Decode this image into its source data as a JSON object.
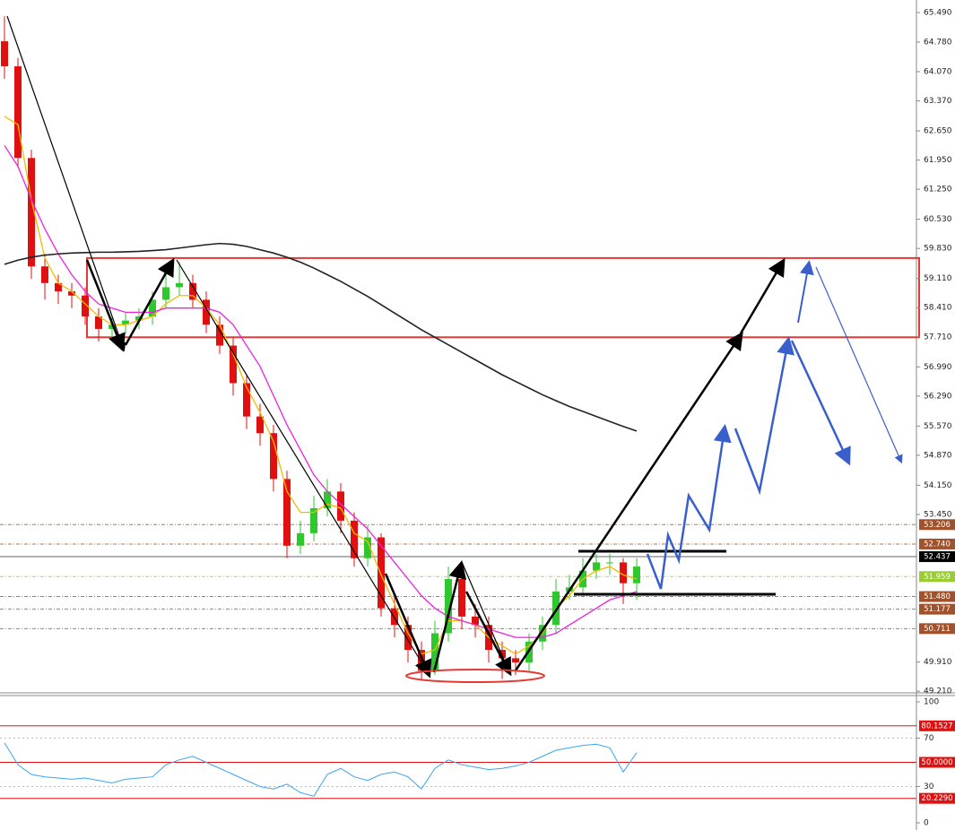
{
  "chart_data": [
    {
      "type": "candlestick",
      "open": [
        64.8,
        64.2,
        62.0,
        59.4,
        59.0,
        58.8,
        58.7,
        58.2,
        57.9,
        58.0,
        58.1,
        58.2,
        58.6,
        58.9,
        59.0,
        58.6,
        58.0,
        57.5,
        56.6,
        55.8,
        55.4,
        54.3,
        52.7,
        53.0,
        53.6,
        54.0,
        53.3,
        52.4,
        52.9,
        51.2,
        50.8,
        50.2,
        49.7,
        50.6,
        51.9,
        51.0,
        50.8,
        50.2,
        50.0,
        49.9,
        50.4,
        50.8,
        51.6,
        51.7,
        52.1,
        52.3,
        52.3,
        51.8
      ],
      "high": [
        65.4,
        64.4,
        62.2,
        59.7,
        59.2,
        59.0,
        58.9,
        58.4,
        58.2,
        58.3,
        58.4,
        58.8,
        59.2,
        59.5,
        59.2,
        58.8,
        58.2,
        57.7,
        56.8,
        56.1,
        55.6,
        54.5,
        53.3,
        53.9,
        54.3,
        54.2,
        53.5,
        53.2,
        53.0,
        51.5,
        51.0,
        50.4,
        50.9,
        52.2,
        52.0,
        51.3,
        51.0,
        50.4,
        50.2,
        50.6,
        51.0,
        51.9,
        52.0,
        52.4,
        52.5,
        52.5,
        52.4,
        52.4
      ],
      "low": [
        63.9,
        61.8,
        59.1,
        58.6,
        58.5,
        58.4,
        58.0,
        57.6,
        57.7,
        57.8,
        57.9,
        58.0,
        58.4,
        58.7,
        58.4,
        57.8,
        57.3,
        56.3,
        55.5,
        55.1,
        54.0,
        52.4,
        52.5,
        52.8,
        53.4,
        53.0,
        52.2,
        52.2,
        51.0,
        50.5,
        49.9,
        49.5,
        49.6,
        50.4,
        50.7,
        50.5,
        49.9,
        49.5,
        49.6,
        49.7,
        50.2,
        50.6,
        51.4,
        51.5,
        51.9,
        52.0,
        51.3,
        51.4
      ],
      "close": [
        64.2,
        62.0,
        59.4,
        59.0,
        58.8,
        58.7,
        58.2,
        57.9,
        58.0,
        58.1,
        58.2,
        58.6,
        58.9,
        59.0,
        58.6,
        58.0,
        57.5,
        56.6,
        55.8,
        55.4,
        54.3,
        52.7,
        53.0,
        53.6,
        54.0,
        53.3,
        52.4,
        52.9,
        51.2,
        50.8,
        50.2,
        49.7,
        50.6,
        51.9,
        51.0,
        50.8,
        50.2,
        50.0,
        49.9,
        50.4,
        50.8,
        51.6,
        51.7,
        52.1,
        52.3,
        52.3,
        51.8,
        52.2
      ],
      "up_color": "#2ec82e",
      "down_color": "#e01010",
      "lines": [
        {
          "color": "#f5b800",
          "values": [
            63.0,
            62.8,
            61.0,
            59.6,
            59.0,
            58.8,
            58.5,
            58.2,
            58.0,
            58.0,
            58.1,
            58.2,
            58.5,
            58.7,
            58.7,
            58.4,
            58.0,
            57.3,
            56.5,
            55.9,
            55.2,
            54.0,
            53.5,
            53.5,
            53.7,
            53.6,
            53.0,
            52.8,
            52.0,
            51.3,
            50.6,
            50.1,
            50.2,
            50.9,
            50.9,
            50.8,
            50.5,
            50.3,
            50.1,
            50.3,
            50.6,
            51.2,
            51.5,
            51.9,
            52.1,
            52.2,
            52.0,
            51.9
          ]
        },
        {
          "color": "#ee22dd",
          "values": [
            62.3,
            61.8,
            61.0,
            60.3,
            59.7,
            59.2,
            58.8,
            58.5,
            58.4,
            58.3,
            58.3,
            58.3,
            58.4,
            58.4,
            58.4,
            58.4,
            58.3,
            58.0,
            57.5,
            57.0,
            56.3,
            55.6,
            55.0,
            54.4,
            54.0,
            53.7,
            53.4,
            53.1,
            52.7,
            52.3,
            51.9,
            51.5,
            51.2,
            51.0,
            50.9,
            50.8,
            50.7,
            50.6,
            50.5,
            50.5,
            50.5,
            50.6,
            50.8,
            51.0,
            51.2,
            51.4,
            51.5,
            51.6
          ]
        },
        {
          "color": "#222222",
          "values": [
            59.45,
            59.55,
            59.62,
            59.67,
            59.7,
            59.72,
            59.73,
            59.74,
            59.74,
            59.75,
            59.76,
            59.78,
            59.8,
            59.84,
            59.88,
            59.92,
            59.95,
            59.93,
            59.88,
            59.8,
            59.72,
            59.62,
            59.5,
            59.36,
            59.2,
            59.04,
            58.86,
            58.68,
            58.48,
            58.28,
            58.08,
            57.88,
            57.7,
            57.52,
            57.34,
            57.16,
            56.98,
            56.8,
            56.64,
            56.48,
            56.32,
            56.18,
            56.04,
            55.92,
            55.8,
            55.68,
            55.56,
            55.45
          ]
        }
      ],
      "ylim": [
        49.17,
        65.79
      ],
      "yticks": [
        {
          "value": 65.49,
          "label": "65.490"
        },
        {
          "value": 64.78,
          "label": "64.780"
        },
        {
          "value": 64.07,
          "label": "64.070"
        },
        {
          "value": 63.37,
          "label": "63.370"
        },
        {
          "value": 62.65,
          "label": "62.650"
        },
        {
          "value": 61.95,
          "label": "61.950"
        },
        {
          "value": 61.25,
          "label": "61.250"
        },
        {
          "value": 60.53,
          "label": "60.530"
        },
        {
          "value": 59.83,
          "label": "59.830"
        },
        {
          "value": 59.11,
          "label": "59.110"
        },
        {
          "value": 58.41,
          "label": "58.410"
        },
        {
          "value": 57.71,
          "label": "57.710"
        },
        {
          "value": 56.99,
          "label": "56.990"
        },
        {
          "value": 56.29,
          "label": "56.290"
        },
        {
          "value": 55.57,
          "label": "55.570"
        },
        {
          "value": 54.87,
          "label": "54.870"
        },
        {
          "value": 54.15,
          "label": "54.150"
        },
        {
          "value": 53.45,
          "label": "53.450"
        },
        {
          "value": 49.91,
          "label": "49.910"
        },
        {
          "value": 49.21,
          "label": "49.210"
        }
      ],
      "price_levels": {
        "values": [
          53.206,
          52.74,
          52.437,
          51.959,
          51.48,
          51.177,
          50.711
        ],
        "value_labels": [
          "53.206",
          "52.740",
          "52.437",
          "51.959",
          "51.480",
          "51.177",
          "50.711"
        ],
        "colors": [
          "#a0522d",
          "#a0522d",
          "#000000",
          "#9acd32",
          "#a0522d",
          "#a0522d",
          "#a0522d"
        ]
      },
      "zone": {
        "ylim": [
          57.7,
          59.6
        ],
        "color": "#e53935"
      }
    },
    {
      "type": "line",
      "values": [
        66,
        48,
        40,
        38,
        37,
        36,
        37,
        35,
        33,
        36,
        37,
        38,
        48,
        52,
        55,
        50,
        45,
        40,
        35,
        30,
        28,
        32,
        25,
        22,
        40,
        45,
        38,
        35,
        40,
        42,
        38,
        28,
        45,
        52,
        48,
        46,
        44,
        45,
        47,
        50,
        55,
        60,
        62,
        64,
        65,
        62,
        42,
        58
      ],
      "color": "#3ea3f0",
      "ylim": [
        0,
        100
      ],
      "yticks": [
        100,
        70,
        30,
        0
      ],
      "grid": true,
      "levels": {
        "values": [
          80.1527,
          50,
          20.229
        ],
        "value_labels": [
          "80.1527",
          "50.0000",
          "20.2290"
        ],
        "color": "#e01010"
      }
    }
  ]
}
